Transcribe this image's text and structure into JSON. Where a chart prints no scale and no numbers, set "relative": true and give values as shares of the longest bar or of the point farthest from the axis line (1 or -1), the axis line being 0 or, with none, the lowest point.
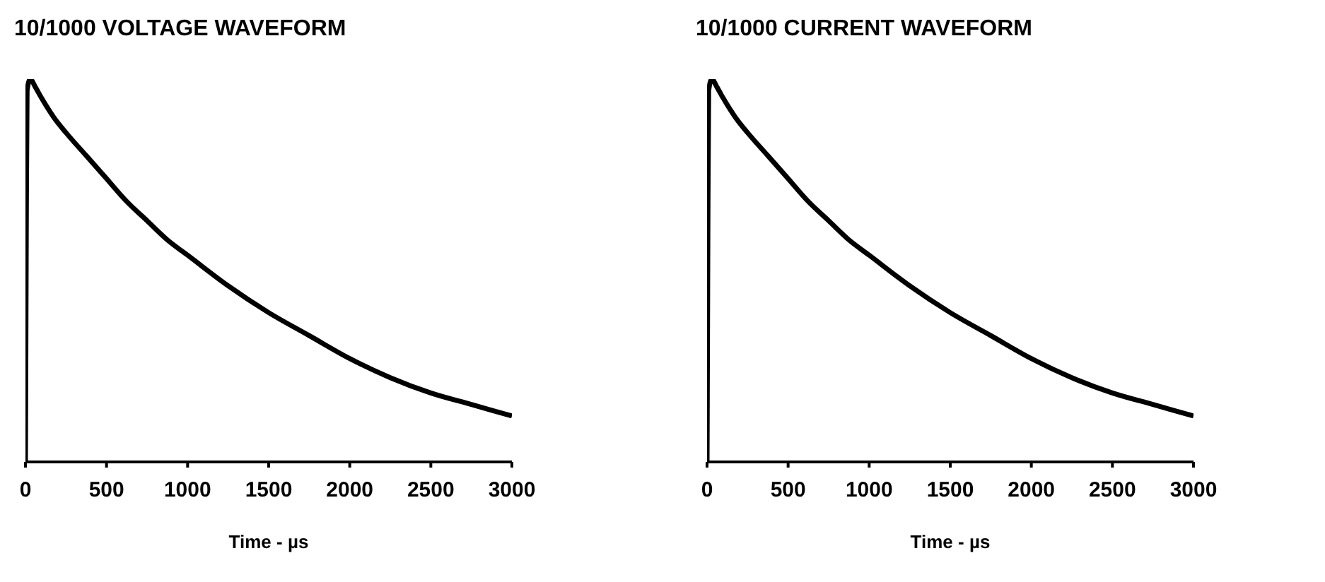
{
  "chart_data": [
    {
      "type": "line",
      "title": "10/1000 VOLTAGE WAVEFORM",
      "xlabel": "Time - µs",
      "relative": true,
      "xlim": [
        0,
        3000
      ],
      "xticks": [
        0,
        500,
        1000,
        1500,
        2000,
        2500,
        3000
      ],
      "marker": "none",
      "line_style": "solid",
      "series": [
        {
          "color": "#000000",
          "x": [
            0,
            5,
            10,
            30,
            60,
            100,
            175,
            250,
            375,
            500,
            625,
            750,
            875,
            1000,
            1250,
            1500,
            1750,
            2000,
            2250,
            2500,
            2750,
            3000
          ],
          "values": [
            0,
            0.6,
            0.97,
            1.0,
            0.98,
            0.95,
            0.9,
            0.86,
            0.8,
            0.74,
            0.68,
            0.63,
            0.58,
            0.54,
            0.46,
            0.39,
            0.33,
            0.27,
            0.22,
            0.18,
            0.15,
            0.12
          ]
        }
      ]
    },
    {
      "type": "line",
      "title": "10/1000 CURRENT WAVEFORM",
      "xlabel": "Time - µs",
      "relative": true,
      "xlim": [
        0,
        3000
      ],
      "xticks": [
        0,
        500,
        1000,
        1500,
        2000,
        2500,
        3000
      ],
      "marker": "none",
      "line_style": "solid",
      "series": [
        {
          "color": "#000000",
          "x": [
            0,
            5,
            10,
            30,
            60,
            100,
            175,
            250,
            375,
            500,
            625,
            750,
            875,
            1000,
            1250,
            1500,
            1750,
            2000,
            2250,
            2500,
            2750,
            3000
          ],
          "values": [
            0,
            0.6,
            0.97,
            1.0,
            0.98,
            0.95,
            0.9,
            0.86,
            0.8,
            0.74,
            0.68,
            0.63,
            0.58,
            0.54,
            0.46,
            0.39,
            0.33,
            0.27,
            0.22,
            0.18,
            0.15,
            0.12
          ]
        }
      ]
    }
  ]
}
